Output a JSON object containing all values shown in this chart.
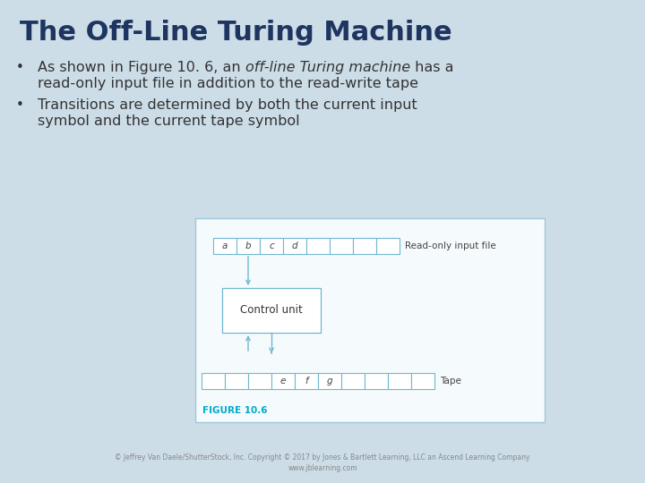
{
  "title": "The Off-Line Turing Machine",
  "title_color": "#1e3560",
  "title_fontsize": 22,
  "bg_color": "#ccdde8",
  "text_color": "#222222",
  "bullet_fontsize": 11.5,
  "diagram_border": "#a0c8d8",
  "diagram_bg": "#f5fafc",
  "line_color": "#70b8d0",
  "figure_label": "FIGURE 10.6",
  "figure_label_color": "#00aacc",
  "copyright": "© Jeffrey Van Daele/ShutterStock, Inc. Copyright © 2017 by Jones & Bartlett Learning, LLC an Ascend Learning Company\nwww.jblearning.com",
  "input_label": "Read-only input file",
  "tape_label": "Tape",
  "control_label": "Control unit",
  "input_chars": [
    "a",
    "b",
    "c",
    "d",
    "",
    "",
    "",
    ""
  ],
  "tape_chars": [
    "",
    "",
    "",
    "e",
    "f",
    "g",
    "",
    "",
    "",
    ""
  ]
}
